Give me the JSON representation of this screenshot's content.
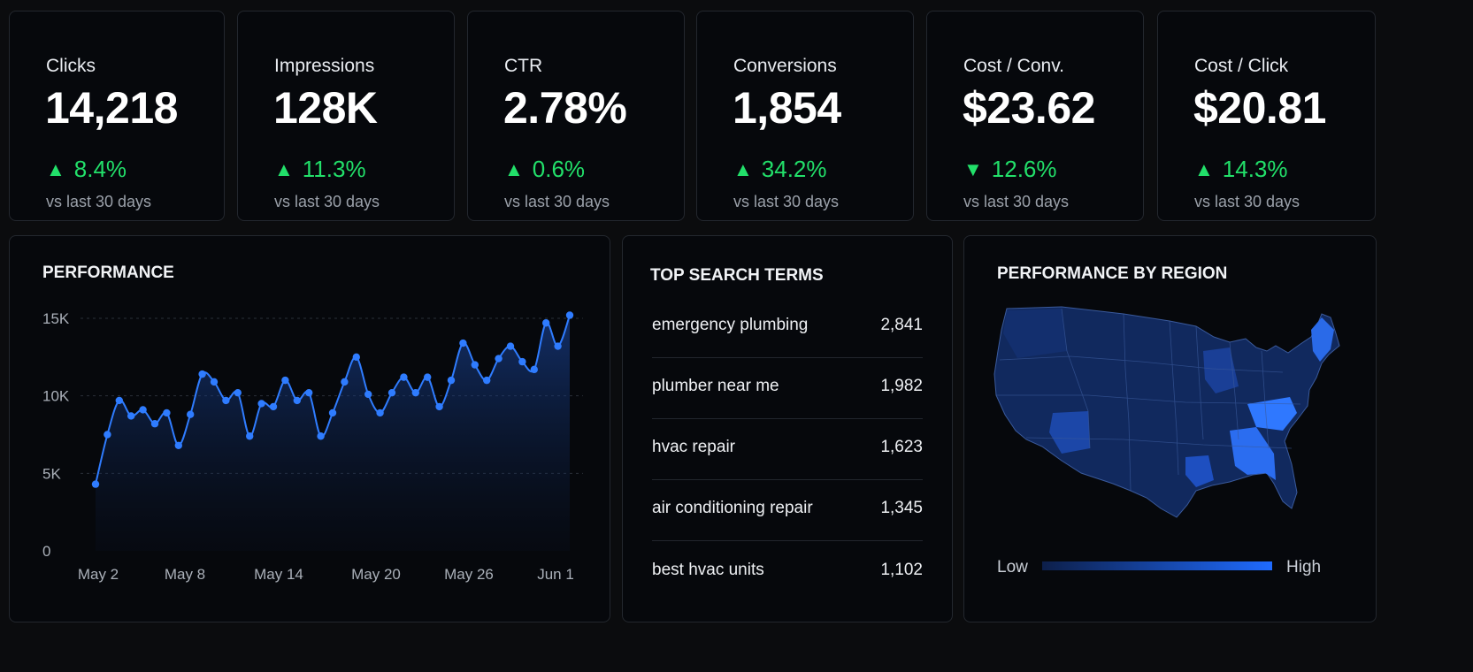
{
  "kpis": [
    {
      "label": "Clicks",
      "value": "14,218",
      "direction": "up",
      "delta": "8.4%",
      "sub": "vs last 30 days"
    },
    {
      "label": "Impressions",
      "value": "128K",
      "direction": "up",
      "delta": "11.3%",
      "sub": "vs last 30 days"
    },
    {
      "label": "CTR",
      "value": "2.78%",
      "direction": "up",
      "delta": "0.6%",
      "sub": "vs last 30 days"
    },
    {
      "label": "Conversions",
      "value": "1,854",
      "direction": "up",
      "delta": "34.2%",
      "sub": "vs last 30 days"
    },
    {
      "label": "Cost / Conv.",
      "value": "$23.62",
      "direction": "down",
      "delta": "12.6%",
      "sub": "vs last 30 days"
    },
    {
      "label": "Cost / Click",
      "value": "$20.81",
      "direction": "up",
      "delta": "14.3%",
      "sub": "vs last 30 days"
    }
  ],
  "colors": {
    "positive": "#22e06a",
    "line": "#2f7cff",
    "map_low": "#0d1f4a",
    "map_high": "#1f6bff"
  },
  "performance": {
    "title": "PERFORMANCE"
  },
  "chart_data": {
    "type": "area",
    "title": "PERFORMANCE",
    "xlabel": "",
    "ylabel": "",
    "ylim": [
      0,
      15000
    ],
    "yticks": [
      0,
      5000,
      10000,
      15000
    ],
    "ytick_labels": [
      "0",
      "5K",
      "10K",
      "15K"
    ],
    "xtick_labels": [
      "May 2",
      "May 8",
      "May 14",
      "May 20",
      "May 26",
      "Jun 1"
    ],
    "grid": true,
    "legend": "none",
    "series": [
      {
        "values": [
          4300,
          7500,
          9700,
          8700,
          9100,
          8200,
          8900,
          6800,
          8800,
          11400,
          10900,
          9700,
          10200,
          7400,
          9500,
          9300,
          11000,
          9700,
          10200,
          7400,
          8900,
          10900,
          12500,
          10100,
          8900,
          10200,
          11200,
          10200,
          11200,
          9300,
          11000,
          13400,
          12000,
          11000,
          12400,
          13200,
          12200,
          11700,
          14700,
          13200,
          15200
        ]
      }
    ]
  },
  "top_terms": {
    "title": "TOP SEARCH TERMS",
    "rows": [
      {
        "term": "emergency plumbing",
        "count": "2,841"
      },
      {
        "term": "plumber near me",
        "count": "1,982"
      },
      {
        "term": "hvac repair",
        "count": "1,623"
      },
      {
        "term": "air conditioning repair",
        "count": "1,345"
      },
      {
        "term": "best hvac units",
        "count": "1,102"
      }
    ]
  },
  "region": {
    "title": "PERFORMANCE BY REGION",
    "legend_low": "Low",
    "legend_high": "High"
  }
}
